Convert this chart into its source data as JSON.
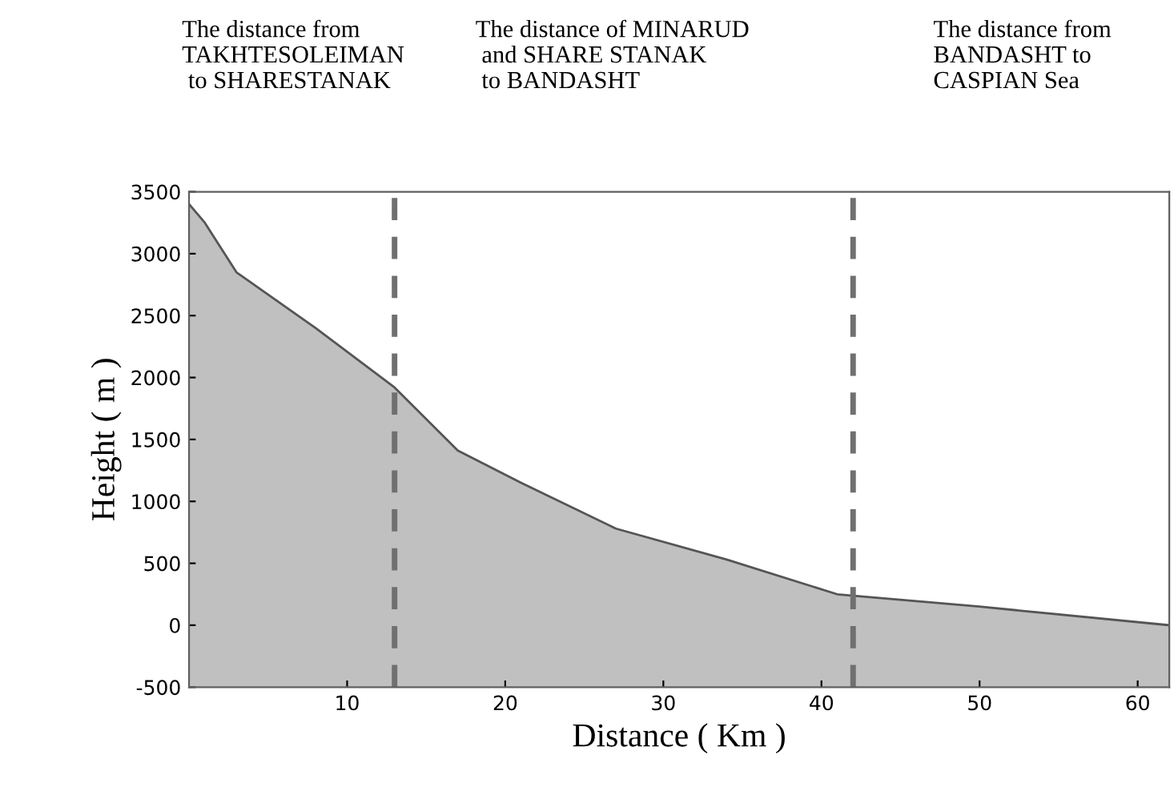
{
  "chart_data": {
    "type": "area",
    "xlabel": "Distance ( Km )",
    "ylabel": "Height ( m )",
    "x": [
      0,
      1,
      3,
      8,
      13,
      17,
      21,
      27,
      34,
      41,
      50,
      62
    ],
    "series": [
      {
        "color": "#c0c0c0",
        "values": [
          3400,
          3250,
          2850,
          2400,
          1920,
          1410,
          1150,
          780,
          530,
          250,
          150,
          0
        ]
      }
    ],
    "xlim": [
      0,
      62
    ],
    "ylim": [
      -500,
      3500
    ],
    "xticks": [
      10,
      20,
      30,
      40,
      50,
      60
    ],
    "yticks": [
      -500,
      0,
      500,
      1000,
      1500,
      2000,
      2500,
      3000,
      3500
    ],
    "bands": [
      {
        "axis": "y",
        "from": -500,
        "to": 0,
        "color": "#c0c0c0"
      }
    ],
    "ref_lines": [
      {
        "axis": "x",
        "value": 13,
        "color": "#707070",
        "line_style": "dashed"
      },
      {
        "axis": "x",
        "value": 42,
        "color": "#707070",
        "line_style": "dashed"
      }
    ],
    "annotations": [
      "The distance from\nTAKHTESOLEIMAN\n to SHARESTANAK",
      "The distance of MINARUD\n and SHARE STANAK\n to BANDASHT",
      "The distance from\nBANDASHT to\nCASPIAN Sea"
    ],
    "grid": false
  }
}
